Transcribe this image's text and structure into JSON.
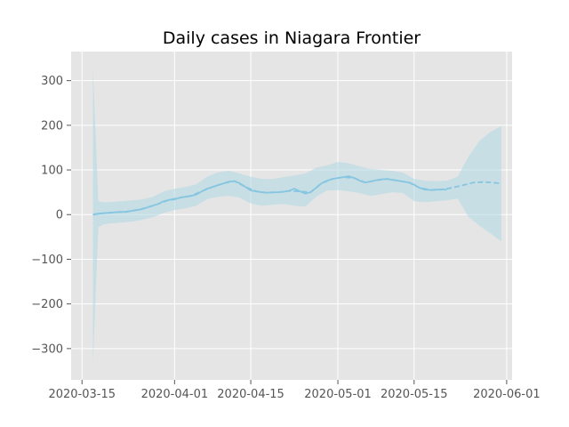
{
  "chart_data": {
    "type": "line",
    "title": "Daily cases in Niagara Frontier",
    "xlabel": "",
    "ylabel": "",
    "x_axis_type": "date",
    "xlim": [
      "2020-03-13",
      "2020-06-02"
    ],
    "ylim": [
      -370,
      365
    ],
    "grid": true,
    "legend": "none",
    "colors": {
      "background": "#e5e5e5",
      "grid": "#ffffff",
      "line": "#87c6e0",
      "band": "#aed8e6",
      "tick_text": "#555555"
    },
    "x_ticks": [
      "2020-03-15",
      "2020-04-01",
      "2020-04-15",
      "2020-05-01",
      "2020-05-15",
      "2020-06-01"
    ],
    "y_ticks": [
      300,
      200,
      100,
      0,
      -100,
      -200,
      -300
    ],
    "y_tick_labels": [
      "300",
      "200",
      "100",
      "0",
      "−100",
      "−200",
      "−300"
    ],
    "series": [
      {
        "style": "solid",
        "x": [
          "2020-03-17",
          "2020-03-18",
          "2020-03-19",
          "2020-03-20",
          "2020-03-21",
          "2020-03-22",
          "2020-03-23",
          "2020-03-24",
          "2020-03-25",
          "2020-03-26",
          "2020-03-27",
          "2020-03-28",
          "2020-03-29",
          "2020-03-30",
          "2020-03-31",
          "2020-04-01",
          "2020-04-02",
          "2020-04-03",
          "2020-04-04",
          "2020-04-05",
          "2020-04-06",
          "2020-04-07",
          "2020-04-08",
          "2020-04-09",
          "2020-04-10",
          "2020-04-11",
          "2020-04-12",
          "2020-04-13",
          "2020-04-14",
          "2020-04-15",
          "2020-04-16",
          "2020-04-17",
          "2020-04-18",
          "2020-04-19",
          "2020-04-20",
          "2020-04-21",
          "2020-04-22",
          "2020-04-23",
          "2020-04-24",
          "2020-04-25",
          "2020-04-26",
          "2020-04-27",
          "2020-04-28",
          "2020-04-29",
          "2020-04-30",
          "2020-05-01",
          "2020-05-02",
          "2020-05-03",
          "2020-05-04",
          "2020-05-05",
          "2020-05-06",
          "2020-05-07",
          "2020-05-08",
          "2020-05-09",
          "2020-05-10",
          "2020-05-11",
          "2020-05-12",
          "2020-05-13",
          "2020-05-14",
          "2020-05-15",
          "2020-05-16",
          "2020-05-17",
          "2020-05-18",
          "2020-05-19",
          "2020-05-20",
          "2020-05-21"
        ],
        "y": [
          0,
          2,
          3,
          4,
          5,
          6,
          6,
          8,
          10,
          12,
          16,
          20,
          24,
          30,
          33,
          34,
          38,
          40,
          42,
          45,
          52,
          58,
          62,
          66,
          70,
          74,
          75,
          70,
          62,
          54,
          52,
          50,
          49,
          50,
          50,
          51,
          53,
          58,
          52,
          47,
          50,
          60,
          70,
          76,
          80,
          82,
          84,
          86,
          82,
          76,
          72,
          74,
          77,
          79,
          80,
          78,
          76,
          74,
          72,
          67,
          60,
          56,
          55,
          56,
          56,
          56
        ]
      },
      {
        "style": "dashed",
        "x": [
          "2020-03-17",
          "2020-03-19",
          "2020-03-21",
          "2020-03-23",
          "2020-03-25",
          "2020-03-27",
          "2020-03-29",
          "2020-03-31",
          "2020-04-02",
          "2020-04-04",
          "2020-04-06",
          "2020-04-08",
          "2020-04-10",
          "2020-04-12",
          "2020-04-14",
          "2020-04-16",
          "2020-04-18",
          "2020-04-20",
          "2020-04-22",
          "2020-04-24",
          "2020-04-26",
          "2020-04-28",
          "2020-04-30",
          "2020-05-02",
          "2020-05-04",
          "2020-05-06",
          "2020-05-08",
          "2020-05-10",
          "2020-05-12",
          "2020-05-14",
          "2020-05-16",
          "2020-05-18",
          "2020-05-20",
          "2020-05-22",
          "2020-05-24",
          "2020-05-26",
          "2020-05-28",
          "2020-05-30",
          "2020-05-31"
        ],
        "y": [
          0,
          3,
          5,
          6,
          10,
          16,
          24,
          33,
          38,
          42,
          52,
          62,
          70,
          75,
          62,
          52,
          49,
          50,
          53,
          52,
          50,
          70,
          80,
          84,
          82,
          72,
          77,
          80,
          76,
          72,
          60,
          55,
          56,
          60,
          66,
          72,
          73,
          71,
          70
        ]
      }
    ],
    "band": {
      "x": [
        "2020-03-17",
        "2020-03-18",
        "2020-03-19",
        "2020-03-20",
        "2020-03-22",
        "2020-03-24",
        "2020-03-26",
        "2020-03-28",
        "2020-03-30",
        "2020-04-01",
        "2020-04-03",
        "2020-04-05",
        "2020-04-07",
        "2020-04-09",
        "2020-04-11",
        "2020-04-13",
        "2020-04-15",
        "2020-04-17",
        "2020-04-19",
        "2020-04-21",
        "2020-04-23",
        "2020-04-25",
        "2020-04-27",
        "2020-04-29",
        "2020-05-01",
        "2020-05-03",
        "2020-05-05",
        "2020-05-07",
        "2020-05-09",
        "2020-05-11",
        "2020-05-13",
        "2020-05-15",
        "2020-05-17",
        "2020-05-19",
        "2020-05-21",
        "2020-05-23",
        "2020-05-25",
        "2020-05-27",
        "2020-05-29",
        "2020-05-31"
      ],
      "upper": [
        330,
        30,
        28,
        28,
        30,
        32,
        34,
        40,
        52,
        58,
        62,
        68,
        85,
        95,
        98,
        92,
        85,
        80,
        80,
        84,
        88,
        92,
        105,
        110,
        118,
        115,
        108,
        102,
        100,
        98,
        94,
        80,
        76,
        75,
        76,
        85,
        130,
        165,
        185,
        198
      ],
      "lower": [
        -335,
        -28,
        -22,
        -20,
        -18,
        -16,
        -12,
        -6,
        4,
        10,
        14,
        20,
        35,
        40,
        42,
        38,
        25,
        20,
        22,
        24,
        20,
        18,
        40,
        54,
        55,
        52,
        48,
        42,
        46,
        50,
        48,
        30,
        28,
        30,
        32,
        36,
        -5,
        -25,
        -42,
        -60
      ]
    }
  }
}
